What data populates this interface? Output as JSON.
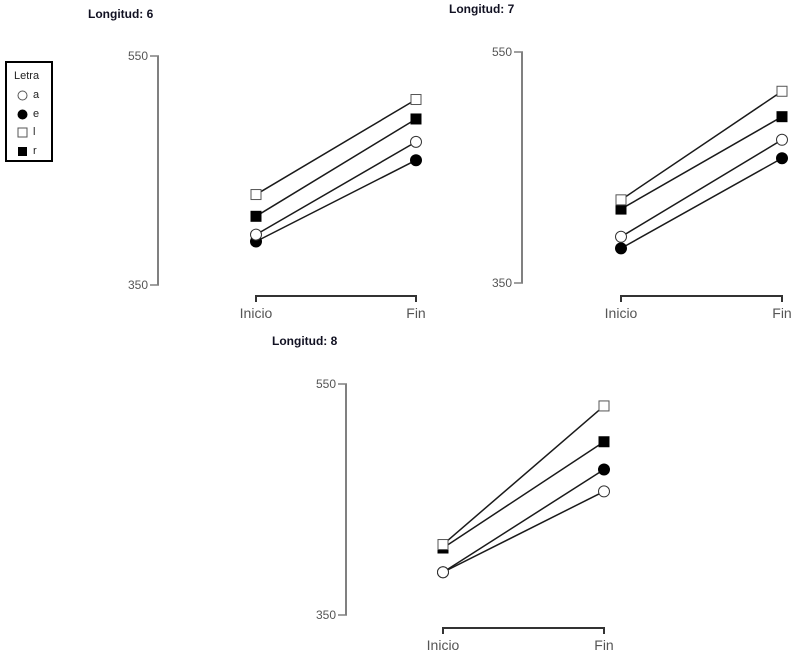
{
  "legend": {
    "title": "Letra",
    "items": [
      {
        "label": "a",
        "marker": "circle-open"
      },
      {
        "label": "e",
        "marker": "circle-filled"
      },
      {
        "label": "l",
        "marker": "square-open"
      },
      {
        "label": "r",
        "marker": "square-filled"
      }
    ]
  },
  "colors": {
    "line": "#1a1a1a",
    "axis": "#808080",
    "tick_label": "#555555",
    "xaxis": "#333333",
    "title": "#111122"
  },
  "panels": [
    {
      "title": "Longitud: 6"
    },
    {
      "title": "Longitud: 7"
    },
    {
      "title": "Longitud: 8"
    }
  ],
  "chart_data": [
    {
      "type": "line",
      "title": "Longitud: 6",
      "categories": [
        "Inicio",
        "Fin"
      ],
      "xlabel": "",
      "ylabel": "",
      "ylim": [
        350,
        550
      ],
      "yticks": [
        350,
        550
      ],
      "grid": false,
      "legend_title": "Letra",
      "series": [
        {
          "name": "a",
          "marker": "circle-open",
          "values": [
            394,
            475
          ]
        },
        {
          "name": "e",
          "marker": "circle-filled",
          "values": [
            388,
            459
          ]
        },
        {
          "name": "l",
          "marker": "square-open",
          "values": [
            429,
            512
          ]
        },
        {
          "name": "r",
          "marker": "square-filled",
          "values": [
            410,
            495
          ]
        }
      ]
    },
    {
      "type": "line",
      "title": "Longitud: 7",
      "categories": [
        "Inicio",
        "Fin"
      ],
      "xlabel": "",
      "ylabel": "",
      "ylim": [
        350,
        550
      ],
      "yticks": [
        350,
        550
      ],
      "grid": false,
      "legend_title": "Letra",
      "series": [
        {
          "name": "a",
          "marker": "circle-open",
          "values": [
            390,
            474
          ]
        },
        {
          "name": "e",
          "marker": "circle-filled",
          "values": [
            380,
            458
          ]
        },
        {
          "name": "l",
          "marker": "square-open",
          "values": [
            422,
            516
          ]
        },
        {
          "name": "r",
          "marker": "square-filled",
          "values": [
            414,
            494
          ]
        }
      ]
    },
    {
      "type": "line",
      "title": "Longitud: 8",
      "categories": [
        "Inicio",
        "Fin"
      ],
      "xlabel": "",
      "ylabel": "",
      "ylim": [
        350,
        550
      ],
      "yticks": [
        350,
        550
      ],
      "grid": false,
      "legend_title": "Letra",
      "series": [
        {
          "name": "a",
          "marker": "circle-open",
          "values": [
            387,
            457
          ]
        },
        {
          "name": "e",
          "marker": "circle-filled",
          "values": [
            387,
            476
          ]
        },
        {
          "name": "l",
          "marker": "square-open",
          "values": [
            411,
            531
          ]
        },
        {
          "name": "r",
          "marker": "square-filled",
          "values": [
            408,
            500
          ]
        }
      ]
    }
  ]
}
